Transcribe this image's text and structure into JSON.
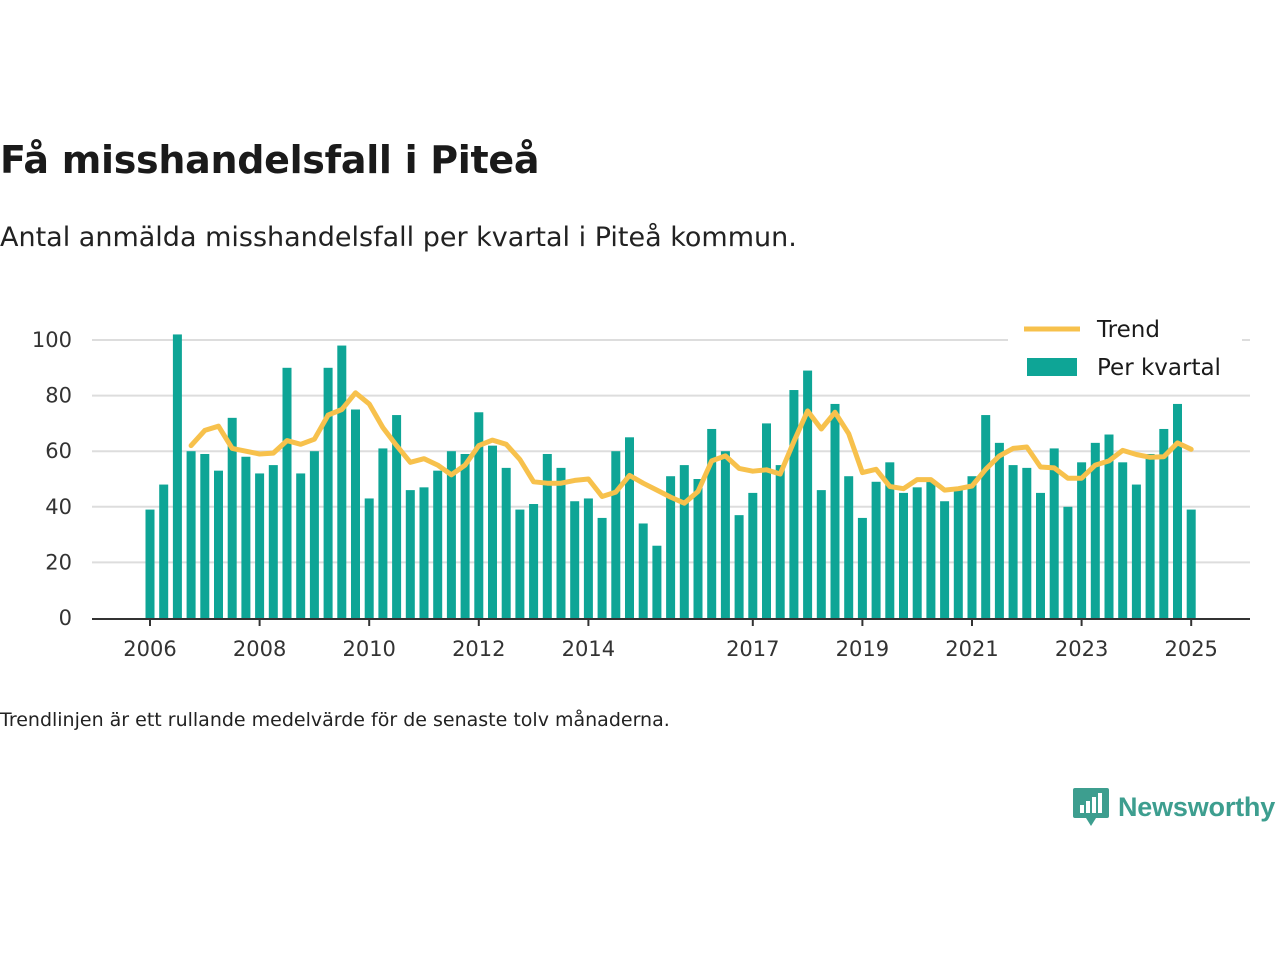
{
  "header": {
    "title": "Få misshandelsfall i Piteå",
    "subtitle": "Antal anmälda misshandelsfall per kvartal i Piteå kommun."
  },
  "footer": {
    "note": "Trendlinjen är ett rullande medelvärde för de senaste tolv månaderna.",
    "brand": "Newsworthy"
  },
  "colors": {
    "bar": "#0ea596",
    "trend": "#f7c14c",
    "grid": "#dddddd",
    "axis": "#333333",
    "brand": "#3d9e8f"
  },
  "chart_data": {
    "type": "bar",
    "title": "",
    "xlabel": "",
    "ylabel": "",
    "ylim": [
      0,
      105
    ],
    "grid": true,
    "legend_position": "top-right",
    "y_ticks": [
      0,
      20,
      40,
      60,
      80,
      100
    ],
    "x_tick_labels": [
      "2006",
      "2008",
      "2010",
      "2012",
      "2014",
      "2017",
      "2019",
      "2021",
      "2023",
      "2025"
    ],
    "x_tick_index": [
      0,
      8,
      16,
      24,
      32,
      44,
      52,
      60,
      68,
      76
    ],
    "series": [
      {
        "name": "Per kvartal",
        "kind": "bar",
        "values": [
          39,
          48,
          102,
          60,
          59,
          53,
          72,
          58,
          52,
          55,
          90,
          52,
          60,
          90,
          98,
          75,
          43,
          61,
          73,
          46,
          47,
          53,
          60,
          59,
          74,
          62,
          54,
          39,
          41,
          59,
          54,
          42,
          43,
          36,
          60,
          65,
          34,
          26,
          51,
          55,
          50,
          68,
          60,
          37,
          45,
          70,
          55,
          82,
          89,
          46,
          77,
          51,
          36,
          49,
          56,
          45,
          47,
          49,
          42,
          46,
          51,
          73,
          63,
          55,
          54,
          45,
          61,
          40,
          56,
          63,
          66,
          56,
          48,
          59,
          68,
          77,
          39
        ]
      },
      {
        "name": "Trend",
        "kind": "line",
        "start_index": 3,
        "values": [
          62,
          67.5,
          69,
          61,
          60,
          59,
          59.3,
          63.8,
          62.5,
          64.3,
          73,
          75,
          81,
          77,
          68.5,
          62,
          56,
          57.3,
          55,
          51.5,
          55,
          62,
          64,
          62.5,
          57,
          49,
          48.5,
          48.5,
          49.5,
          50,
          43.7,
          45.3,
          51.3,
          48.5,
          46,
          43.5,
          41.3,
          45.5,
          56.5,
          58.3,
          53.8,
          52.8,
          53.3,
          51.8,
          63.5,
          74.5,
          68,
          74,
          66.3,
          52.3,
          53.5,
          47.3,
          46.5,
          49.8,
          49.8,
          46,
          46.5,
          47.5,
          53.5,
          58.3,
          61,
          61.5,
          54.3,
          54,
          50.3,
          50.3,
          55,
          56.5,
          60.3,
          58.8,
          57.8,
          58,
          63,
          60.7
        ]
      }
    ]
  }
}
